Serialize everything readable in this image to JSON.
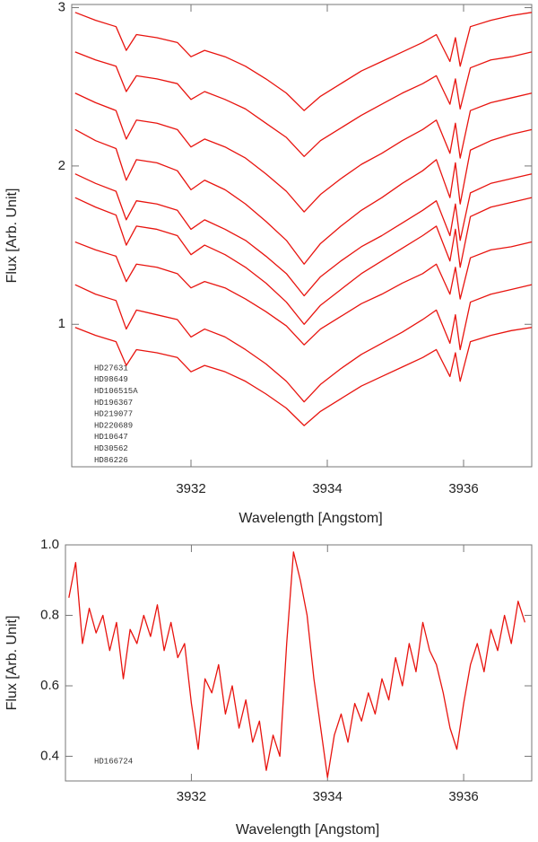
{
  "chart_data": [
    {
      "type": "line",
      "x_label": "Wavelength  [Angstom]",
      "y_label": "Flux  [Arb. Unit]",
      "x": [
        3930.3,
        3930.6,
        3930.9,
        3931.05,
        3931.2,
        3931.5,
        3931.8,
        3932.0,
        3932.2,
        3932.5,
        3932.8,
        3933.1,
        3933.4,
        3933.66,
        3933.9,
        3934.2,
        3934.5,
        3934.8,
        3935.1,
        3935.4,
        3935.6,
        3935.8,
        3935.88,
        3935.95,
        3936.1,
        3936.4,
        3936.7,
        3937.0
      ],
      "series": [
        {
          "name": "HD27631",
          "color": "#e8140f",
          "values": [
            2.97,
            2.92,
            2.88,
            2.73,
            2.83,
            2.81,
            2.78,
            2.69,
            2.73,
            2.69,
            2.63,
            2.55,
            2.46,
            2.35,
            2.44,
            2.52,
            2.6,
            2.66,
            2.72,
            2.78,
            2.83,
            2.66,
            2.81,
            2.63,
            2.88,
            2.92,
            2.95,
            2.97
          ]
        },
        {
          "name": "HD98649",
          "color": "#e8140f",
          "values": [
            2.72,
            2.67,
            2.63,
            2.47,
            2.57,
            2.55,
            2.52,
            2.42,
            2.47,
            2.42,
            2.36,
            2.27,
            2.18,
            2.06,
            2.16,
            2.24,
            2.32,
            2.39,
            2.46,
            2.52,
            2.57,
            2.39,
            2.55,
            2.36,
            2.62,
            2.67,
            2.69,
            2.72
          ]
        },
        {
          "name": "HD106515A",
          "color": "#e8140f",
          "values": [
            2.46,
            2.4,
            2.35,
            2.17,
            2.29,
            2.27,
            2.23,
            2.12,
            2.17,
            2.12,
            2.05,
            1.95,
            1.84,
            1.71,
            1.82,
            1.92,
            2.01,
            2.08,
            2.16,
            2.23,
            2.29,
            2.08,
            2.27,
            2.05,
            2.35,
            2.4,
            2.43,
            2.46
          ]
        },
        {
          "name": "HD196367",
          "color": "#e8140f",
          "values": [
            2.23,
            2.16,
            2.11,
            1.91,
            2.04,
            2.02,
            1.97,
            1.85,
            1.91,
            1.85,
            1.76,
            1.65,
            1.53,
            1.38,
            1.51,
            1.62,
            1.72,
            1.8,
            1.89,
            1.97,
            2.04,
            1.8,
            2.02,
            1.76,
            2.1,
            2.16,
            2.2,
            2.23
          ]
        },
        {
          "name": "HD219077",
          "color": "#e8140f",
          "values": [
            1.95,
            1.89,
            1.84,
            1.66,
            1.78,
            1.76,
            1.72,
            1.6,
            1.66,
            1.6,
            1.53,
            1.43,
            1.32,
            1.18,
            1.3,
            1.4,
            1.49,
            1.56,
            1.64,
            1.72,
            1.78,
            1.56,
            1.76,
            1.53,
            1.83,
            1.89,
            1.92,
            1.95
          ]
        },
        {
          "name": "HD220689",
          "color": "#e8140f",
          "values": [
            1.8,
            1.74,
            1.69,
            1.5,
            1.62,
            1.6,
            1.56,
            1.44,
            1.5,
            1.44,
            1.36,
            1.26,
            1.14,
            1.0,
            1.12,
            1.22,
            1.32,
            1.4,
            1.48,
            1.56,
            1.62,
            1.4,
            1.6,
            1.36,
            1.68,
            1.74,
            1.77,
            1.8
          ]
        },
        {
          "name": "HD10647",
          "color": "#e8140f",
          "values": [
            1.52,
            1.47,
            1.43,
            1.27,
            1.38,
            1.36,
            1.32,
            1.23,
            1.27,
            1.23,
            1.16,
            1.08,
            0.99,
            0.87,
            0.97,
            1.05,
            1.13,
            1.19,
            1.26,
            1.32,
            1.38,
            1.19,
            1.36,
            1.16,
            1.42,
            1.47,
            1.49,
            1.52
          ]
        },
        {
          "name": "HD30562",
          "color": "#e8140f",
          "values": [
            1.25,
            1.19,
            1.15,
            0.97,
            1.09,
            1.06,
            1.03,
            0.92,
            0.97,
            0.92,
            0.84,
            0.75,
            0.64,
            0.51,
            0.62,
            0.72,
            0.81,
            0.88,
            0.95,
            1.03,
            1.09,
            0.88,
            1.06,
            0.84,
            1.14,
            1.19,
            1.22,
            1.25
          ]
        },
        {
          "name": "HD86226",
          "color": "#e8140f",
          "values": [
            0.98,
            0.93,
            0.89,
            0.74,
            0.84,
            0.82,
            0.79,
            0.7,
            0.74,
            0.7,
            0.64,
            0.56,
            0.47,
            0.36,
            0.45,
            0.53,
            0.61,
            0.67,
            0.73,
            0.79,
            0.84,
            0.67,
            0.82,
            0.64,
            0.89,
            0.93,
            0.96,
            0.98
          ]
        }
      ],
      "xlim": [
        3930.25,
        3937.0
      ],
      "xticks": [
        3932,
        3934,
        3936
      ],
      "ylim": [
        0.1,
        3.02
      ],
      "yticks": [
        1,
        2,
        3
      ]
    },
    {
      "type": "line",
      "x_label": "Wavelength  [Angstom]",
      "y_label": "Flux  [Arb. Unit]",
      "x": [
        3930.2,
        3930.3,
        3930.4,
        3930.5,
        3930.6,
        3930.7,
        3930.8,
        3930.9,
        3931.0,
        3931.1,
        3931.2,
        3931.3,
        3931.4,
        3931.5,
        3931.6,
        3931.7,
        3931.8,
        3931.9,
        3932.0,
        3932.1,
        3932.2,
        3932.3,
        3932.4,
        3932.5,
        3932.6,
        3932.7,
        3932.8,
        3932.9,
        3933.0,
        3933.1,
        3933.2,
        3933.3,
        3933.4,
        3933.5,
        3933.6,
        3933.7,
        3933.8,
        3933.9,
        3934.0,
        3934.1,
        3934.2,
        3934.3,
        3934.4,
        3934.5,
        3934.6,
        3934.7,
        3934.8,
        3934.9,
        3935.0,
        3935.1,
        3935.2,
        3935.3,
        3935.4,
        3935.5,
        3935.6,
        3935.7,
        3935.8,
        3935.9,
        3936.0,
        3936.1,
        3936.2,
        3936.3,
        3936.4,
        3936.5,
        3936.6,
        3936.7,
        3936.8,
        3936.9
      ],
      "series": [
        {
          "name": "HD166724",
          "color": "#e8140f",
          "values": [
            0.85,
            0.95,
            0.72,
            0.82,
            0.75,
            0.8,
            0.7,
            0.78,
            0.62,
            0.76,
            0.72,
            0.8,
            0.74,
            0.83,
            0.7,
            0.78,
            0.68,
            0.72,
            0.55,
            0.42,
            0.62,
            0.58,
            0.66,
            0.52,
            0.6,
            0.48,
            0.56,
            0.44,
            0.5,
            0.36,
            0.46,
            0.4,
            0.72,
            0.98,
            0.9,
            0.8,
            0.62,
            0.48,
            0.34,
            0.46,
            0.52,
            0.44,
            0.55,
            0.5,
            0.58,
            0.52,
            0.62,
            0.56,
            0.68,
            0.6,
            0.72,
            0.64,
            0.78,
            0.7,
            0.66,
            0.58,
            0.48,
            0.42,
            0.55,
            0.66,
            0.72,
            0.64,
            0.76,
            0.7,
            0.8,
            0.72,
            0.84,
            0.78
          ]
        }
      ],
      "xlim": [
        3930.15,
        3937.0
      ],
      "xticks": [
        3932,
        3934,
        3936
      ],
      "ylim": [
        0.33,
        1.0
      ],
      "yticks": [
        0.4,
        0.6,
        0.8,
        {
          "value": 1.0,
          "label": "1.0"
        }
      ]
    }
  ]
}
